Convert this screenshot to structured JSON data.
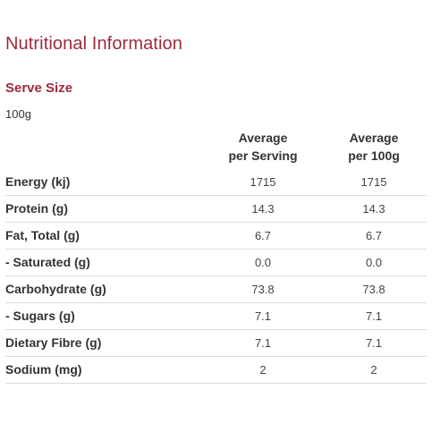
{
  "title": "Nutritional Information",
  "serve_size": {
    "label": "Serve Size",
    "value": "100g"
  },
  "columns": [
    {
      "line1": "Average",
      "line2": "per Serving"
    },
    {
      "line1": "Average",
      "line2": "per 100g"
    }
  ],
  "rows": [
    {
      "name": "Energy (kj)",
      "per_serving": "1715",
      "per_100g": "1715"
    },
    {
      "name": "Protein (g)",
      "per_serving": "14.3",
      "per_100g": "14.3"
    },
    {
      "name": "Fat, Total (g)",
      "per_serving": "6.7",
      "per_100g": "6.7"
    },
    {
      "name": "- Saturated (g)",
      "per_serving": "0.0",
      "per_100g": "0.0"
    },
    {
      "name": "Carbohydrate (g)",
      "per_serving": "73.8",
      "per_100g": "73.8"
    },
    {
      "name": "- Sugars (g)",
      "per_serving": "7.1",
      "per_100g": "7.1"
    },
    {
      "name": "Dietary Fibre (g)",
      "per_serving": "7.1",
      "per_100g": "7.1"
    },
    {
      "name": "Sodium (mg)",
      "per_serving": "2",
      "per_100g": "2"
    }
  ],
  "colors": {
    "accent": "#9c2b3c",
    "text": "#333333",
    "divider": "#dcdcdc"
  }
}
